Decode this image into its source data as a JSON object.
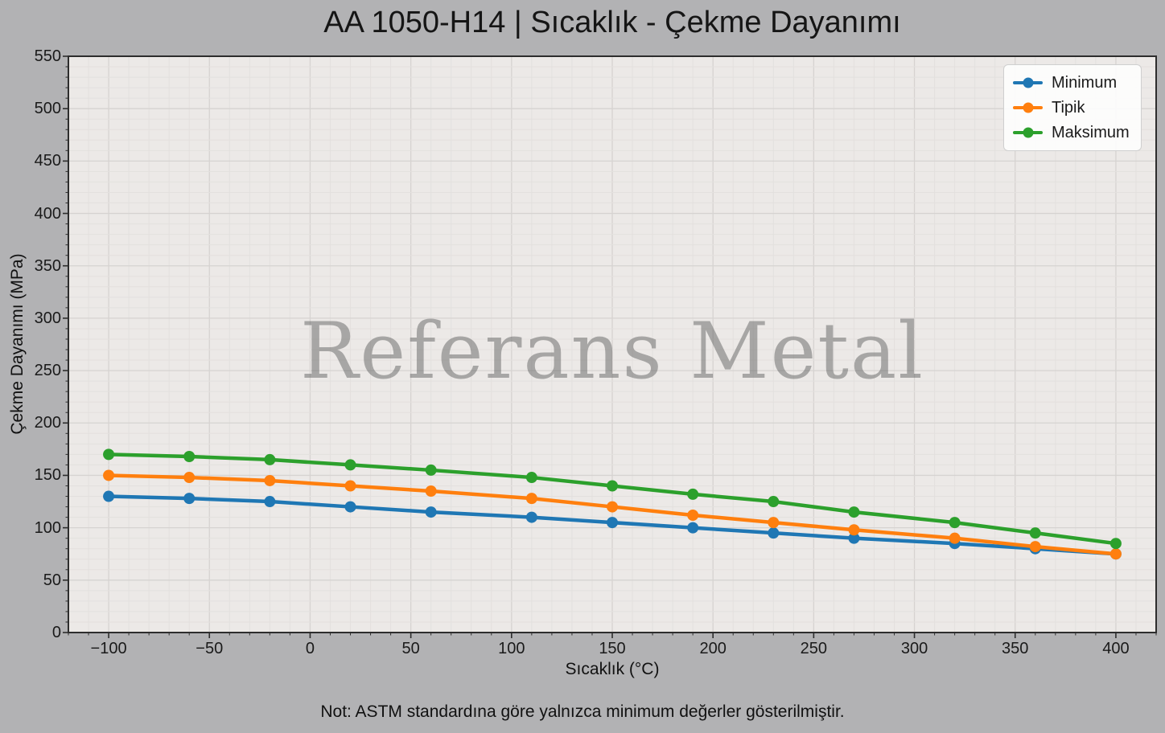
{
  "chart_data": {
    "type": "line",
    "title": "AA 1050-H14 | Sıcaklık - Çekme Dayanımı",
    "xlabel": "Sıcaklık (°C)",
    "ylabel": "Çekme Dayanımı (MPa)",
    "x": [
      -100,
      -60,
      -20,
      20,
      60,
      110,
      150,
      190,
      230,
      270,
      320,
      360,
      400
    ],
    "series": [
      {
        "name": "Minimum",
        "color": "#1f77b4",
        "values": [
          130,
          128,
          125,
          120,
          115,
          110,
          105,
          100,
          95,
          90,
          85,
          80,
          75
        ]
      },
      {
        "name": "Tipik",
        "color": "#ff7f0e",
        "values": [
          150,
          148,
          145,
          140,
          135,
          128,
          120,
          112,
          105,
          98,
          90,
          82,
          75
        ]
      },
      {
        "name": "Maksimum",
        "color": "#2ca02c",
        "values": [
          170,
          168,
          165,
          160,
          155,
          148,
          140,
          132,
          125,
          115,
          105,
          95,
          85
        ]
      }
    ],
    "xlim": [
      -120,
      420
    ],
    "ylim": [
      0,
      550
    ],
    "xticks": [
      -100,
      -50,
      0,
      50,
      100,
      150,
      200,
      250,
      300,
      350,
      400
    ],
    "yticks": [
      0,
      50,
      100,
      150,
      200,
      250,
      300,
      350,
      400,
      450,
      500,
      550
    ],
    "minor_tick_step": 10,
    "grid": true,
    "legend_position": "upper right",
    "watermark": "Referans Metal",
    "note": "Not: ASTM standardına göre yalnızca minimum değerler gösterilmiştir.",
    "colors": {
      "figure_bg": "#b2b2b4",
      "plot_bg": "#ece9e7",
      "grid_major": "#d6d3d1",
      "grid_minor": "#e3e0de",
      "spine": "#2d2d2d",
      "legend_bg": "#fdfdfd"
    }
  }
}
